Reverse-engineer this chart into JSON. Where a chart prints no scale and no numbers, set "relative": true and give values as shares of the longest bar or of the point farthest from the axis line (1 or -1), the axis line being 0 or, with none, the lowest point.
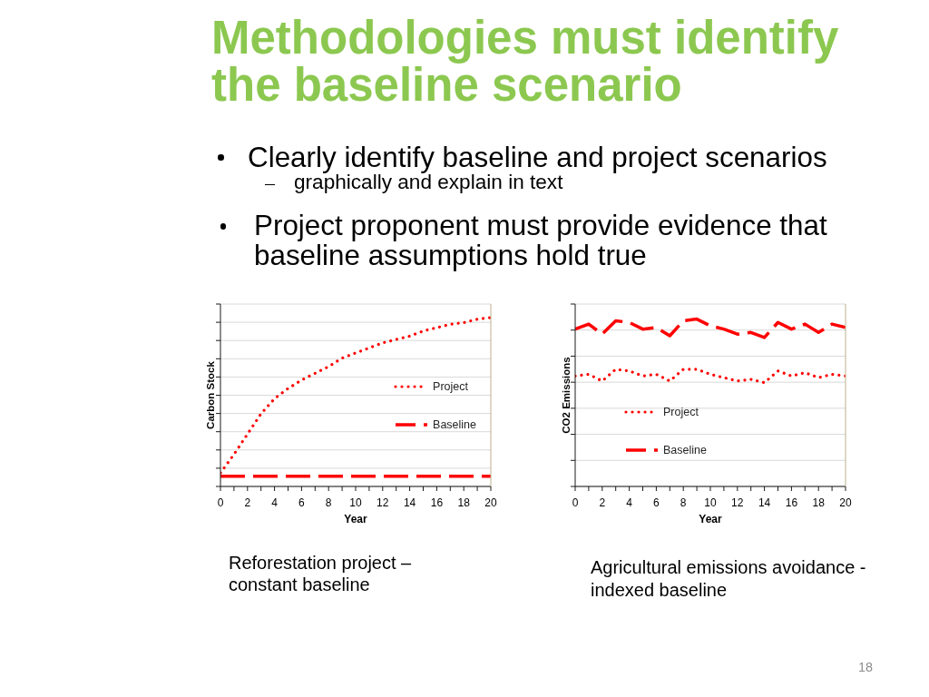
{
  "chart_data": [
    {
      "type": "line",
      "title": "Methodologies must identify the baseline scenario",
      "annotations": [
        "Clearly identify baseline and project scenarios",
        "graphically and explain in text",
        "Project proponent must provide evidence that baseline assumptions hold true",
        "Reforestation project – constant baseline"
      ],
      "xlabel": "Year",
      "ylabel": "Carbon Stock",
      "x": [
        0,
        1,
        2,
        3,
        4,
        5,
        6,
        7,
        8,
        9,
        10,
        11,
        12,
        13,
        14,
        15,
        16,
        17,
        18,
        19,
        20
      ],
      "series": [
        {
          "name": "Project",
          "color": "#ff0000",
          "line_style": "dotted",
          "values": [
            0.08,
            0.19,
            0.31,
            0.43,
            0.52,
            0.58,
            0.63,
            0.67,
            0.71,
            0.76,
            0.79,
            0.82,
            0.85,
            0.87,
            0.89,
            0.92,
            0.94,
            0.96,
            0.97,
            0.99,
            1
          ]
        },
        {
          "name": "Baseline",
          "color": "#ff0000",
          "line_style": "dashed",
          "values": [
            0.06,
            0.06,
            0.06,
            0.06,
            0.06,
            0.06,
            0.06,
            0.06,
            0.06,
            0.06,
            0.06,
            0.06,
            0.06,
            0.06,
            0.06,
            0.06,
            0.06,
            0.06,
            0.06,
            0.06,
            0.06
          ]
        }
      ],
      "relative": true,
      "xlim": [
        0,
        20
      ],
      "xticks": [
        0,
        {
          "value": 1,
          "label": null
        },
        2,
        {
          "value": 3,
          "label": null
        },
        4,
        {
          "value": 5,
          "label": null
        },
        6,
        {
          "value": 7,
          "label": null
        },
        8,
        {
          "value": 9,
          "label": null
        },
        10,
        {
          "value": 11,
          "label": null
        },
        12,
        {
          "value": 13,
          "label": null
        },
        14,
        {
          "value": 15,
          "label": null
        },
        16,
        {
          "value": 17,
          "label": null
        },
        18,
        {
          "value": 19,
          "label": null
        },
        20
      ],
      "grid": "y",
      "legend": "right",
      "marker": "none",
      "tick_labels": "x"
    },
    {
      "type": "line",
      "annotations": [
        "Agricultural emissions avoidance - indexed baseline",
        "18"
      ],
      "xlabel": "Year",
      "ylabel": "CO2 Emissions",
      "x": [
        0,
        1,
        2,
        3,
        4,
        5,
        6,
        7,
        8,
        9,
        10,
        11,
        12,
        13,
        14,
        15,
        16,
        17,
        18,
        19,
        20
      ],
      "series": [
        {
          "name": "Project",
          "color": "#ff0000",
          "line_style": "dotted",
          "values": [
            0.66,
            0.67,
            0.63,
            0.7,
            0.69,
            0.66,
            0.67,
            0.63,
            0.7,
            0.7,
            0.67,
            0.65,
            0.63,
            0.64,
            0.62,
            0.69,
            0.66,
            0.68,
            0.65,
            0.67,
            0.66
          ]
        },
        {
          "name": "Baseline",
          "color": "#ff0000",
          "line_style": "dashed",
          "values": [
            0.94,
            0.97,
            0.91,
            0.99,
            0.98,
            0.94,
            0.95,
            0.9,
            0.99,
            1,
            0.96,
            0.94,
            0.91,
            0.92,
            0.89,
            0.98,
            0.94,
            0.97,
            0.92,
            0.97,
            0.95
          ]
        }
      ],
      "relative": true,
      "xlim": [
        0,
        20
      ],
      "xticks": [
        0,
        {
          "value": 1,
          "label": null
        },
        2,
        {
          "value": 3,
          "label": null
        },
        4,
        {
          "value": 5,
          "label": null
        },
        6,
        {
          "value": 7,
          "label": null
        },
        8,
        {
          "value": 9,
          "label": null
        },
        10,
        {
          "value": 11,
          "label": null
        },
        12,
        {
          "value": 13,
          "label": null
        },
        14,
        {
          "value": 15,
          "label": null
        },
        16,
        {
          "value": 17,
          "label": null
        },
        18,
        {
          "value": 19,
          "label": null
        },
        20
      ],
      "grid": "y",
      "legend": "bottom left",
      "marker": "none",
      "tick_labels": "x"
    }
  ]
}
